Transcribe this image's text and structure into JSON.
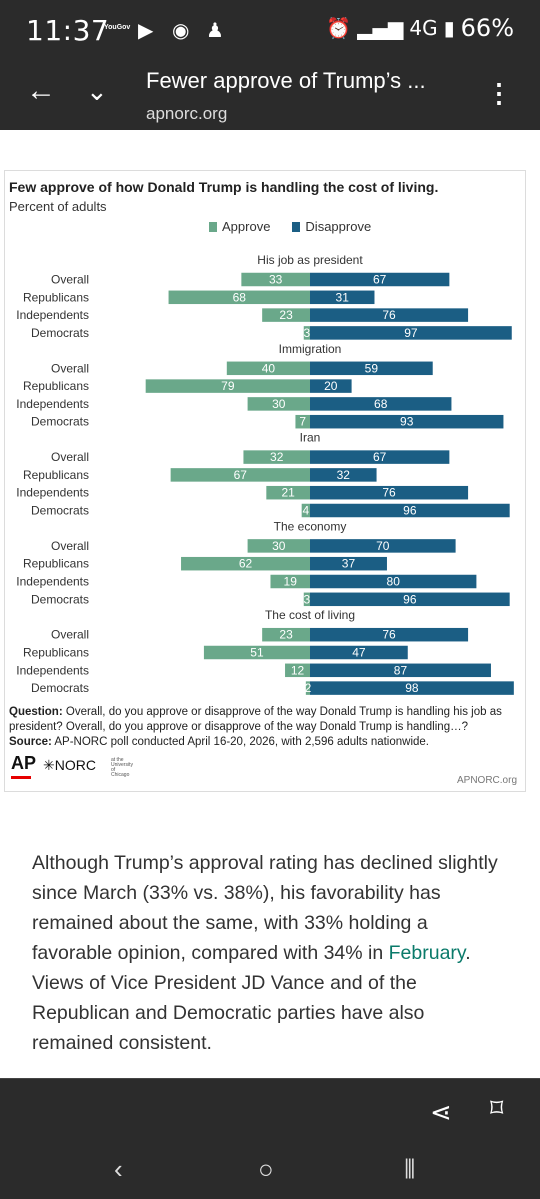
{
  "status_bar": {
    "time": "11:37",
    "yougov": "YouGov",
    "network": "4G",
    "battery": "66%"
  },
  "app_bar": {
    "title": "Fewer approve of Trump’s ...",
    "url": "apnorc.org"
  },
  "chart_data": {
    "type": "bar",
    "title": "Few approve of how Donald Trump is handling the cost of living.",
    "subtitle": "Percent of adults",
    "legend": [
      {
        "name": "Approve",
        "color": "#6aa88a"
      },
      {
        "name": "Disapprove",
        "color": "#1b5e84"
      }
    ],
    "legend_position": "top-center",
    "groups": [
      {
        "title": "His job as president",
        "rows": [
          {
            "label": "Overall",
            "approve": 33,
            "disapprove": 67
          },
          {
            "label": "Republicans",
            "approve": 68,
            "disapprove": 31
          },
          {
            "label": "Independents",
            "approve": 23,
            "disapprove": 76
          },
          {
            "label": "Democrats",
            "approve": 3,
            "disapprove": 97
          }
        ]
      },
      {
        "title": "Immigration",
        "rows": [
          {
            "label": "Overall",
            "approve": 40,
            "disapprove": 59
          },
          {
            "label": "Republicans",
            "approve": 79,
            "disapprove": 20
          },
          {
            "label": "Independents",
            "approve": 30,
            "disapprove": 68
          },
          {
            "label": "Democrats",
            "approve": 7,
            "disapprove": 93
          }
        ]
      },
      {
        "title": "Iran",
        "rows": [
          {
            "label": "Overall",
            "approve": 32,
            "disapprove": 67
          },
          {
            "label": "Republicans",
            "approve": 67,
            "disapprove": 32
          },
          {
            "label": "Independents",
            "approve": 21,
            "disapprove": 76
          },
          {
            "label": "Democrats",
            "approve": 4,
            "disapprove": 96
          }
        ]
      },
      {
        "title": "The economy",
        "rows": [
          {
            "label": "Overall",
            "approve": 30,
            "disapprove": 70
          },
          {
            "label": "Republicans",
            "approve": 62,
            "disapprove": 37
          },
          {
            "label": "Independents",
            "approve": 19,
            "disapprove": 80
          },
          {
            "label": "Democrats",
            "approve": 3,
            "disapprove": 96
          }
        ]
      },
      {
        "title": "The cost of living",
        "rows": [
          {
            "label": "Overall",
            "approve": 23,
            "disapprove": 76
          },
          {
            "label": "Republicans",
            "approve": 51,
            "disapprove": 47
          },
          {
            "label": "Independents",
            "approve": 12,
            "disapprove": 87
          },
          {
            "label": "Democrats",
            "approve": 2,
            "disapprove": 98
          }
        ]
      }
    ]
  },
  "chart_footer": {
    "question_label": "Question:",
    "question_text": "Overall, do you approve or disapprove of the way Donald Trump is handling his job as president? Overall, do you approve or disapprove of the way Donald Trump is handling…?",
    "source_label": "Source:",
    "source_text": "AP-NORC poll conducted April 16-20, 2026, with 2,596 adults nationwide.",
    "logo_ap": "AP",
    "logo_norc": "✳NORC",
    "logo_norc_sub": "at the University of Chicago",
    "credit": "APNORC.org"
  },
  "article": {
    "text_before_link": "Although Trump’s approval rating has declined slightly since March (33% vs. 38%), his favorability has remained about the same, with 33% holding a favorable opinion, compared with 34% in ",
    "link_text": "February",
    "text_after_link": ". Views of Vice President JD Vance and of the Republican and Democratic parties have also remained consistent."
  },
  "icons": {
    "back": "arrow-left-icon",
    "dropdown": "chevron-down-icon",
    "menu": "more-vert-icon",
    "share": "share-icon",
    "bookmark": "bookmark-icon"
  }
}
